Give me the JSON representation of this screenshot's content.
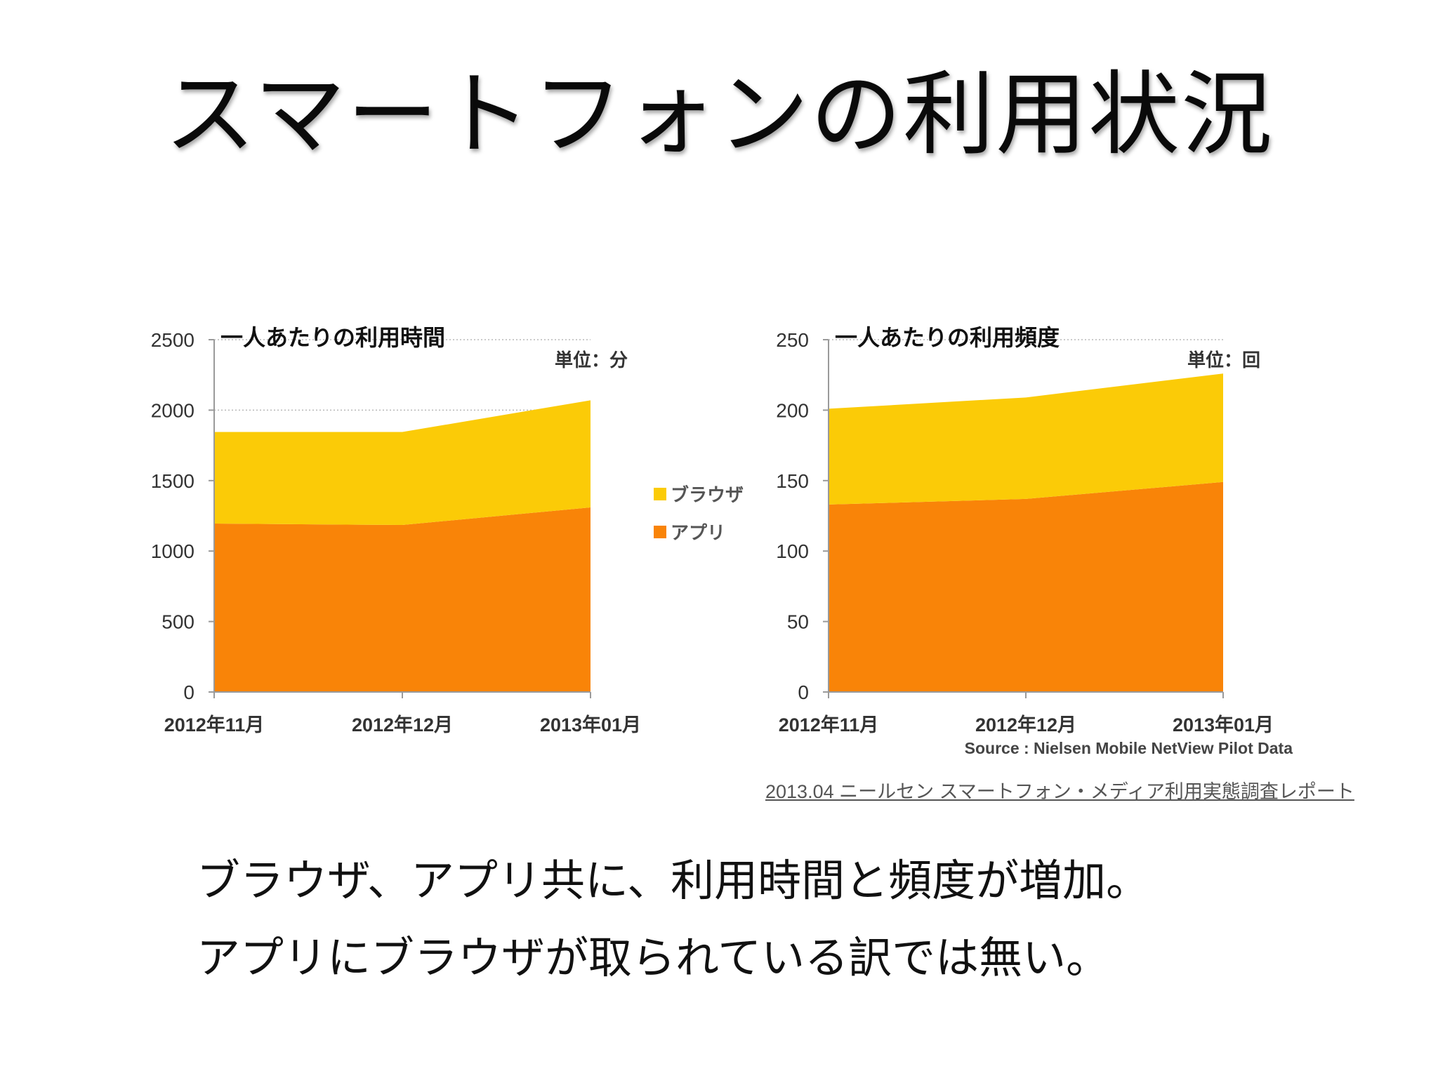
{
  "slide": {
    "title": "スマートフォンの利用状況",
    "source_link": "2013.04 ニールセン スマートフォン・メディア利用実態調査レポート",
    "body_lines": [
      "ブラウザ、アプリ共に、利用時間と頻度が増加。",
      "アプリにブラウザが取られている訳では無い。"
    ]
  },
  "colors": {
    "app": "#F98408",
    "browser": "#FBCB07",
    "axis": "#9a9a9a",
    "text": "#222222"
  },
  "chart_data": [
    {
      "type": "area",
      "stacked": true,
      "title": "一人あたりの利用時間",
      "unit_label": "単位：分",
      "categories": [
        "2012年11月",
        "2012年12月",
        "2013年01月"
      ],
      "series": [
        {
          "name": "アプリ",
          "values": [
            1195,
            1185,
            1310
          ]
        },
        {
          "name": "ブラウザ",
          "values": [
            650,
            660,
            760
          ]
        }
      ],
      "ylim": [
        0,
        2500
      ],
      "yticks": [
        0,
        500,
        1000,
        1500,
        2000,
        2500
      ],
      "legend_position": "right",
      "grid": "dotted major gridlines"
    },
    {
      "type": "area",
      "stacked": true,
      "title": "一人あたりの利用頻度",
      "unit_label": "単位：回",
      "categories": [
        "2012年11月",
        "2012年12月",
        "2013年01月"
      ],
      "series": [
        {
          "name": "アプリ",
          "values": [
            133,
            137,
            149
          ]
        },
        {
          "name": "ブラウザ",
          "values": [
            68,
            72,
            77
          ]
        }
      ],
      "ylim": [
        0,
        250
      ],
      "yticks": [
        0,
        50,
        100,
        150,
        200,
        250
      ],
      "source_note": "Source :  Nielsen Mobile NetView Pilot Data",
      "grid": "dotted major gridlines"
    }
  ]
}
